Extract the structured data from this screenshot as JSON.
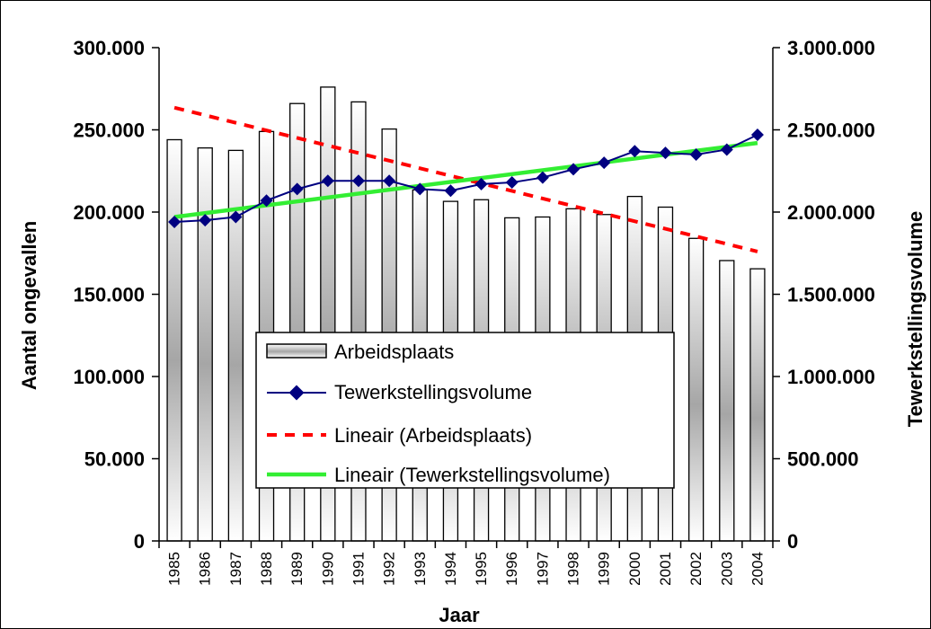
{
  "chart_data": {
    "type": "bar",
    "categories": [
      "1985",
      "1986",
      "1987",
      "1988",
      "1989",
      "1990",
      "1991",
      "1992",
      "1993",
      "1994",
      "1995",
      "1996",
      "1997",
      "1998",
      "1999",
      "2000",
      "2001",
      "2002",
      "2003",
      "2004"
    ],
    "series": [
      {
        "name": "Arbeidsplaats",
        "type": "bar",
        "axis": "left",
        "values": [
          244000,
          239000,
          237500,
          249000,
          266000,
          276000,
          267000,
          250500,
          213500,
          206500,
          207500,
          196500,
          197000,
          202000,
          198500,
          209500,
          203000,
          184000,
          170500,
          165500
        ]
      },
      {
        "name": "Tewerkstellingsvolume",
        "type": "line",
        "axis": "right",
        "color": "#000080",
        "marker": "diamond",
        "values": [
          1940000,
          1950000,
          1970000,
          2070000,
          2140000,
          2190000,
          2190000,
          2190000,
          2140000,
          2130000,
          2170000,
          2180000,
          2210000,
          2260000,
          2300000,
          2370000,
          2360000,
          2350000,
          2380000,
          2470000
        ]
      },
      {
        "name": "Lineair (Arbeidsplaats)",
        "type": "trendline",
        "axis": "left",
        "color": "#ff0000",
        "style": "dashed",
        "start": 263500,
        "end": 176000
      },
      {
        "name": "Lineair (Tewerkstellingsvolume)",
        "type": "trendline",
        "axis": "right",
        "color": "#33ee33",
        "style": "solid",
        "start": 1970000,
        "end": 2420000
      }
    ],
    "xlabel": "Jaar",
    "ylabel": "Aantal ongevallen",
    "y2label": "Tewerkstellingsvolume",
    "ylim": [
      0,
      300000
    ],
    "y2lim": [
      0,
      3000000
    ],
    "yticks": [
      "0",
      "50.000",
      "100.000",
      "150.000",
      "200.000",
      "250.000",
      "300.000"
    ],
    "y2ticks": [
      "0",
      "500.000",
      "1.000.000",
      "1.500.000",
      "2.000.000",
      "2.500.000",
      "3.000.000"
    ],
    "grid": false,
    "legend": "center"
  }
}
